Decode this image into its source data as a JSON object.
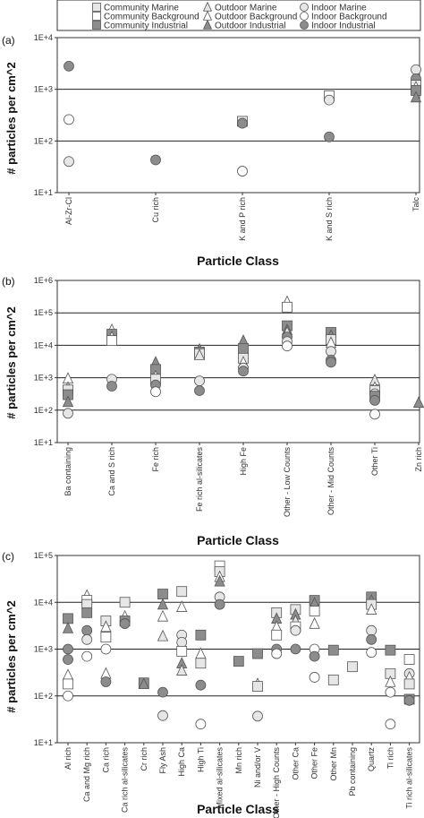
{
  "legend": {
    "entries": [
      {
        "label": "Community Marine",
        "marker": "square",
        "fill": "#e6e6e6"
      },
      {
        "label": "Outdoor Marine",
        "marker": "triangle",
        "fill": "#e6e6e6"
      },
      {
        "label": "Indoor Marine",
        "marker": "circle",
        "fill": "#e6e6e6"
      },
      {
        "label": "Community Background",
        "marker": "square",
        "fill": "#ffffff"
      },
      {
        "label": "Outdoor Background",
        "marker": "triangle",
        "fill": "#ffffff"
      },
      {
        "label": "Indoor Background",
        "marker": "circle",
        "fill": "#ffffff"
      },
      {
        "label": "Community Industrial",
        "marker": "square",
        "fill": "#8c8c8c"
      },
      {
        "label": "Outdoor Industrial",
        "marker": "triangle",
        "fill": "#8c8c8c"
      },
      {
        "label": "Indoor Industrial",
        "marker": "circle",
        "fill": "#8c8c8c"
      }
    ]
  },
  "chart_data": [
    {
      "type": "scatter",
      "panel_label": "(a)",
      "xlabel": "Particle Class",
      "ylabel": "# particles per cm^2",
      "scale": "log",
      "ylim_exp": [
        1,
        4
      ],
      "ytick_labels": [
        "1E+1",
        "1E+2",
        "1E+3",
        "1E+4"
      ],
      "gridlines": [
        2,
        3
      ],
      "categories": [
        "Al-Zr-Cl",
        "Cu rich",
        "K and P rich",
        "K and S rich",
        "Talc"
      ],
      "points": [
        {
          "cat": 0,
          "y": 2800,
          "s": "indoor_industrial"
        },
        {
          "cat": 0,
          "y": 260,
          "s": "indoor_background"
        },
        {
          "cat": 0,
          "y": 40,
          "s": "indoor_marine"
        },
        {
          "cat": 1,
          "y": 43,
          "s": "indoor_industrial"
        },
        {
          "cat": 2,
          "y": 240,
          "s": "community_marine"
        },
        {
          "cat": 2,
          "y": 220,
          "s": "indoor_industrial"
        },
        {
          "cat": 2,
          "y": 26,
          "s": "indoor_background"
        },
        {
          "cat": 3,
          "y": 750,
          "s": "community_background"
        },
        {
          "cat": 3,
          "y": 620,
          "s": "indoor_marine"
        },
        {
          "cat": 3,
          "y": 120,
          "s": "indoor_industrial"
        },
        {
          "cat": 4,
          "y": 2400,
          "s": "indoor_marine"
        },
        {
          "cat": 4,
          "y": 1600,
          "s": "indoor_industrial"
        },
        {
          "cat": 4,
          "y": 1200,
          "s": "community_marine"
        },
        {
          "cat": 4,
          "y": 1100,
          "s": "outdoor_background"
        },
        {
          "cat": 4,
          "y": 950,
          "s": "community_industrial"
        },
        {
          "cat": 4,
          "y": 700,
          "s": "outdoor_industrial"
        }
      ]
    },
    {
      "type": "scatter",
      "panel_label": "(b)",
      "xlabel": "Particle Class",
      "ylabel": "# particles per cm^2",
      "scale": "log",
      "ylim_exp": [
        1,
        6
      ],
      "ytick_labels": [
        "1E+1",
        "1E+2",
        "1E+3",
        "1E+4",
        "1E+5",
        "1E+6"
      ],
      "gridlines": [
        2,
        3,
        4,
        5
      ],
      "categories": [
        "Ba containing",
        "Ca and S rich",
        "Fe rich",
        "Fe rich al-silicates",
        "High Fe",
        "Other - Low Counts",
        "Other - Mid Counts",
        "Other Ti",
        "Zn rich"
      ],
      "points": [
        {
          "cat": 0,
          "y": 950,
          "s": "outdoor_background"
        },
        {
          "cat": 0,
          "y": 500,
          "s": "outdoor_marine"
        },
        {
          "cat": 0,
          "y": 420,
          "s": "community_marine"
        },
        {
          "cat": 0,
          "y": 300,
          "s": "community_industrial"
        },
        {
          "cat": 0,
          "y": 180,
          "s": "outdoor_industrial"
        },
        {
          "cat": 0,
          "y": 80,
          "s": "indoor_marine"
        },
        {
          "cat": 1,
          "y": 30000,
          "s": "outdoor_background"
        },
        {
          "cat": 1,
          "y": 22000,
          "s": "community_industrial"
        },
        {
          "cat": 1,
          "y": 18000,
          "s": "outdoor_marine"
        },
        {
          "cat": 1,
          "y": 14000,
          "s": "community_background"
        },
        {
          "cat": 1,
          "y": 900,
          "s": "indoor_marine"
        },
        {
          "cat": 1,
          "y": 550,
          "s": "indoor_industrial"
        },
        {
          "cat": 2,
          "y": 3000,
          "s": "outdoor_industrial"
        },
        {
          "cat": 2,
          "y": 1800,
          "s": "community_industrial"
        },
        {
          "cat": 2,
          "y": 1100,
          "s": "outdoor_background"
        },
        {
          "cat": 2,
          "y": 900,
          "s": "community_marine"
        },
        {
          "cat": 2,
          "y": 600,
          "s": "indoor_industrial"
        },
        {
          "cat": 2,
          "y": 370,
          "s": "indoor_background"
        },
        {
          "cat": 3,
          "y": 7500,
          "s": "outdoor_industrial"
        },
        {
          "cat": 3,
          "y": 6200,
          "s": "community_industrial"
        },
        {
          "cat": 3,
          "y": 5500,
          "s": "community_marine"
        },
        {
          "cat": 3,
          "y": 5000,
          "s": "outdoor_marine"
        },
        {
          "cat": 3,
          "y": 800,
          "s": "indoor_marine"
        },
        {
          "cat": 3,
          "y": 400,
          "s": "indoor_industrial"
        },
        {
          "cat": 4,
          "y": 14000,
          "s": "outdoor_industrial"
        },
        {
          "cat": 4,
          "y": 8000,
          "s": "community_industrial"
        },
        {
          "cat": 4,
          "y": 4000,
          "s": "community_marine"
        },
        {
          "cat": 4,
          "y": 3000,
          "s": "outdoor_background"
        },
        {
          "cat": 4,
          "y": 2000,
          "s": "indoor_marine"
        },
        {
          "cat": 4,
          "y": 1600,
          "s": "indoor_industrial"
        },
        {
          "cat": 5,
          "y": 220000,
          "s": "outdoor_background"
        },
        {
          "cat": 5,
          "y": 150000,
          "s": "community_background"
        },
        {
          "cat": 5,
          "y": 40000,
          "s": "community_industrial"
        },
        {
          "cat": 5,
          "y": 30000,
          "s": "outdoor_industrial"
        },
        {
          "cat": 5,
          "y": 25000,
          "s": "outdoor_marine"
        },
        {
          "cat": 5,
          "y": 18000,
          "s": "indoor_industrial"
        },
        {
          "cat": 5,
          "y": 13000,
          "s": "indoor_marine"
        },
        {
          "cat": 5,
          "y": 9500,
          "s": "indoor_background"
        },
        {
          "cat": 6,
          "y": 25000,
          "s": "community_industrial"
        },
        {
          "cat": 6,
          "y": 20000,
          "s": "outdoor_industrial"
        },
        {
          "cat": 6,
          "y": 15000,
          "s": "community_marine"
        },
        {
          "cat": 6,
          "y": 12000,
          "s": "outdoor_background"
        },
        {
          "cat": 6,
          "y": 6500,
          "s": "indoor_marine"
        },
        {
          "cat": 6,
          "y": 3500,
          "s": "indoor_industrial"
        },
        {
          "cat": 6,
          "y": 3000,
          "s": "indoor_industrial"
        },
        {
          "cat": 7,
          "y": 850,
          "s": "outdoor_marine"
        },
        {
          "cat": 7,
          "y": 500,
          "s": "outdoor_background"
        },
        {
          "cat": 7,
          "y": 400,
          "s": "community_marine"
        },
        {
          "cat": 7,
          "y": 320,
          "s": "indoor_marine"
        },
        {
          "cat": 7,
          "y": 270,
          "s": "community_industrial"
        },
        {
          "cat": 7,
          "y": 200,
          "s": "indoor_industrial"
        },
        {
          "cat": 7,
          "y": 75,
          "s": "indoor_background"
        },
        {
          "cat": 8,
          "y": 170,
          "s": "outdoor_industrial"
        }
      ]
    },
    {
      "type": "scatter",
      "panel_label": "(c)",
      "xlabel": "Particle Class",
      "ylabel": "# particles per cm^2",
      "scale": "log",
      "ylim_exp": [
        1,
        5
      ],
      "ytick_labels": [
        "1E+1",
        "1E+2",
        "1E+3",
        "1E+4",
        "1E+5"
      ],
      "gridlines": [
        2,
        3,
        4
      ],
      "categories": [
        "Al rich",
        "Ca and Mg rich",
        "Ca rich",
        "Ca rich al-silicates",
        "Cr rich",
        "Fly Ash",
        "High Ca",
        "High Ti",
        "Mixed al-silicates",
        "Mn rich",
        "Ni and/or V",
        "Other - High Counts",
        "Other Ca",
        "Other Fe",
        "Other Mn",
        "Pb containing",
        "Quartz",
        "Ti rich",
        "Ti rich al-silicates"
      ],
      "points": [
        {
          "cat": 0,
          "y": 4500,
          "s": "community_industrial"
        },
        {
          "cat": 0,
          "y": 2800,
          "s": "outdoor_industrial"
        },
        {
          "cat": 0,
          "y": 1000,
          "s": "indoor_industrial"
        },
        {
          "cat": 0,
          "y": 600,
          "s": "indoor_industrial"
        },
        {
          "cat": 0,
          "y": 280,
          "s": "outdoor_background"
        },
        {
          "cat": 0,
          "y": 180,
          "s": "community_background"
        },
        {
          "cat": 0,
          "y": 100,
          "s": "indoor_background"
        },
        {
          "cat": 1,
          "y": 14000,
          "s": "outdoor_background"
        },
        {
          "cat": 1,
          "y": 11000,
          "s": "community_background"
        },
        {
          "cat": 1,
          "y": 9000,
          "s": "community_marine"
        },
        {
          "cat": 1,
          "y": 6000,
          "s": "community_industrial"
        },
        {
          "cat": 1,
          "y": 2500,
          "s": "indoor_industrial"
        },
        {
          "cat": 1,
          "y": 1600,
          "s": "indoor_marine"
        },
        {
          "cat": 1,
          "y": 700,
          "s": "indoor_background"
        },
        {
          "cat": 2,
          "y": 4000,
          "s": "community_marine"
        },
        {
          "cat": 2,
          "y": 3000,
          "s": "outdoor_background"
        },
        {
          "cat": 2,
          "y": 1800,
          "s": "community_background"
        },
        {
          "cat": 2,
          "y": 1000,
          "s": "indoor_background"
        },
        {
          "cat": 2,
          "y": 300,
          "s": "outdoor_background"
        },
        {
          "cat": 2,
          "y": 200,
          "s": "indoor_industrial"
        },
        {
          "cat": 3,
          "y": 10000,
          "s": "community_marine"
        },
        {
          "cat": 3,
          "y": 5000,
          "s": "outdoor_background"
        },
        {
          "cat": 3,
          "y": 4000,
          "s": "community_industrial"
        },
        {
          "cat": 3,
          "y": 3500,
          "s": "indoor_industrial"
        },
        {
          "cat": 4,
          "y": 190,
          "s": "community_industrial"
        },
        {
          "cat": 4,
          "y": 180,
          "s": "outdoor_industrial"
        },
        {
          "cat": 5,
          "y": 15000,
          "s": "community_industrial"
        },
        {
          "cat": 5,
          "y": 9000,
          "s": "outdoor_industrial"
        },
        {
          "cat": 5,
          "y": 5000,
          "s": "outdoor_background"
        },
        {
          "cat": 5,
          "y": 1900,
          "s": "outdoor_marine"
        },
        {
          "cat": 5,
          "y": 120,
          "s": "indoor_industrial"
        },
        {
          "cat": 5,
          "y": 38,
          "s": "indoor_marine"
        },
        {
          "cat": 6,
          "y": 17000,
          "s": "community_marine"
        },
        {
          "cat": 6,
          "y": 8000,
          "s": "outdoor_background"
        },
        {
          "cat": 6,
          "y": 2000,
          "s": "indoor_marine"
        },
        {
          "cat": 6,
          "y": 1400,
          "s": "indoor_marine"
        },
        {
          "cat": 6,
          "y": 900,
          "s": "community_background"
        },
        {
          "cat": 6,
          "y": 500,
          "s": "outdoor_industrial"
        },
        {
          "cat": 6,
          "y": 350,
          "s": "outdoor_marine"
        },
        {
          "cat": 7,
          "y": 2000,
          "s": "community_industrial"
        },
        {
          "cat": 7,
          "y": 800,
          "s": "outdoor_background"
        },
        {
          "cat": 7,
          "y": 500,
          "s": "community_marine"
        },
        {
          "cat": 7,
          "y": 170,
          "s": "indoor_industrial"
        },
        {
          "cat": 7,
          "y": 25,
          "s": "indoor_background"
        },
        {
          "cat": 8,
          "y": 60000,
          "s": "community_background"
        },
        {
          "cat": 8,
          "y": 45000,
          "s": "community_marine"
        },
        {
          "cat": 8,
          "y": 35000,
          "s": "outdoor_background"
        },
        {
          "cat": 8,
          "y": 28000,
          "s": "outdoor_industrial"
        },
        {
          "cat": 8,
          "y": 13000,
          "s": "indoor_marine"
        },
        {
          "cat": 8,
          "y": 9000,
          "s": "indoor_industrial"
        },
        {
          "cat": 9,
          "y": 550,
          "s": "community_industrial"
        },
        {
          "cat": 10,
          "y": 800,
          "s": "community_industrial"
        },
        {
          "cat": 10,
          "y": 180,
          "s": "outdoor_background"
        },
        {
          "cat": 10,
          "y": 160,
          "s": "community_marine"
        },
        {
          "cat": 10,
          "y": 37,
          "s": "indoor_marine"
        },
        {
          "cat": 11,
          "y": 6000,
          "s": "community_marine"
        },
        {
          "cat": 11,
          "y": 4500,
          "s": "outdoor_industrial"
        },
        {
          "cat": 11,
          "y": 3000,
          "s": "outdoor_background"
        },
        {
          "cat": 11,
          "y": 2000,
          "s": "community_background"
        },
        {
          "cat": 11,
          "y": 1000,
          "s": "indoor_industrial"
        },
        {
          "cat": 11,
          "y": 800,
          "s": "indoor_background"
        },
        {
          "cat": 12,
          "y": 7000,
          "s": "community_marine"
        },
        {
          "cat": 12,
          "y": 5500,
          "s": "outdoor_industrial"
        },
        {
          "cat": 12,
          "y": 4000,
          "s": "outdoor_marine"
        },
        {
          "cat": 12,
          "y": 3000,
          "s": "community_background"
        },
        {
          "cat": 12,
          "y": 2500,
          "s": "indoor_marine"
        },
        {
          "cat": 12,
          "y": 1000,
          "s": "indoor_industrial"
        },
        {
          "cat": 13,
          "y": 11000,
          "s": "community_industrial"
        },
        {
          "cat": 13,
          "y": 9500,
          "s": "outdoor_industrial"
        },
        {
          "cat": 13,
          "y": 6500,
          "s": "community_background"
        },
        {
          "cat": 13,
          "y": 3500,
          "s": "outdoor_background"
        },
        {
          "cat": 13,
          "y": 1000,
          "s": "indoor_background"
        },
        {
          "cat": 13,
          "y": 700,
          "s": "indoor_industrial"
        },
        {
          "cat": 13,
          "y": 250,
          "s": "indoor_background"
        },
        {
          "cat": 14,
          "y": 950,
          "s": "community_industrial"
        },
        {
          "cat": 14,
          "y": 220,
          "s": "community_marine"
        },
        {
          "cat": 15,
          "y": 420,
          "s": "community_marine"
        },
        {
          "cat": 16,
          "y": 13000,
          "s": "community_industrial"
        },
        {
          "cat": 16,
          "y": 11000,
          "s": "outdoor_industrial"
        },
        {
          "cat": 16,
          "y": 9000,
          "s": "community_marine"
        },
        {
          "cat": 16,
          "y": 7000,
          "s": "outdoor_background"
        },
        {
          "cat": 16,
          "y": 2500,
          "s": "indoor_marine"
        },
        {
          "cat": 16,
          "y": 1600,
          "s": "indoor_industrial"
        },
        {
          "cat": 16,
          "y": 850,
          "s": "indoor_background"
        },
        {
          "cat": 17,
          "y": 950,
          "s": "community_industrial"
        },
        {
          "cat": 17,
          "y": 300,
          "s": "community_marine"
        },
        {
          "cat": 17,
          "y": 200,
          "s": "outdoor_background"
        },
        {
          "cat": 17,
          "y": 120,
          "s": "indoor_background"
        },
        {
          "cat": 17,
          "y": 25,
          "s": "indoor_background"
        },
        {
          "cat": 18,
          "y": 600,
          "s": "community_background"
        },
        {
          "cat": 18,
          "y": 300,
          "s": "indoor_marine"
        },
        {
          "cat": 18,
          "y": 250,
          "s": "outdoor_background"
        },
        {
          "cat": 18,
          "y": 180,
          "s": "community_marine"
        },
        {
          "cat": 18,
          "y": 85,
          "s": "community_industrial"
        },
        {
          "cat": 18,
          "y": 80,
          "s": "indoor_industrial"
        }
      ]
    }
  ]
}
